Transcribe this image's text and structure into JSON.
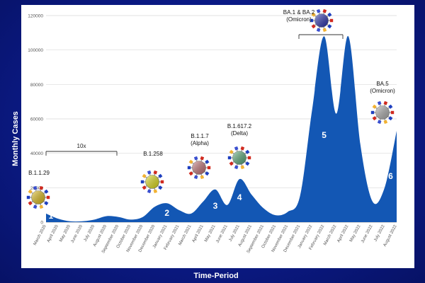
{
  "chart_data": {
    "type": "area",
    "xlabel": "Time-Period",
    "ylabel": "Monthly Cases",
    "ylim": [
      0,
      120000
    ],
    "y_ticks": [
      0,
      20000,
      40000,
      60000,
      80000,
      100000,
      120000
    ],
    "grid": true,
    "categories": [
      "March 2020",
      "April 2020",
      "May 2020",
      "June 2020",
      "July 2020",
      "August 2020",
      "September 2020",
      "October 2020",
      "November 2020",
      "December 2020",
      "January 2021",
      "February 2021",
      "March 2021",
      "April 2021",
      "May 2021",
      "June 2021",
      "July 2021",
      "August 2021",
      "September 2021",
      "October 2021",
      "November 2021",
      "December 2021",
      "January 2022",
      "February 2022",
      "March 2022",
      "April 2022",
      "May 2022",
      "June 2022",
      "July 2022",
      "August 2022"
    ],
    "series": [
      {
        "values": [
          5000,
          2000,
          500,
          500,
          1500,
          3500,
          3000,
          1500,
          3000,
          9000,
          11000,
          7000,
          5000,
          12000,
          19000,
          10000,
          25000,
          16000,
          8000,
          4000,
          6000,
          15000,
          65000,
          108000,
          63000,
          108000,
          45000,
          12000,
          20000,
          53000
        ]
      }
    ],
    "color": "#1357b4",
    "wave_numbers": [
      "1",
      "2",
      "3",
      "4",
      "5",
      "6"
    ],
    "variants": [
      {
        "name": "B.1.1.29",
        "color": "#e6c21a"
      },
      {
        "name": "B.1.258",
        "color": "#e8e51c"
      },
      {
        "name": "B.1.1.7",
        "sub": "(Alpha)",
        "color": "#c9787c"
      },
      {
        "name": "B.1.617.2",
        "sub": "(Delta)",
        "color": "#5fb07e"
      },
      {
        "name": "BA.1 & BA.2",
        "sub": "(Omicron)",
        "color": "#2f37b5"
      },
      {
        "name": "BA.5",
        "sub": "(Omicron)",
        "color": "#b4b4b4"
      }
    ],
    "bracket_label": "10x"
  }
}
